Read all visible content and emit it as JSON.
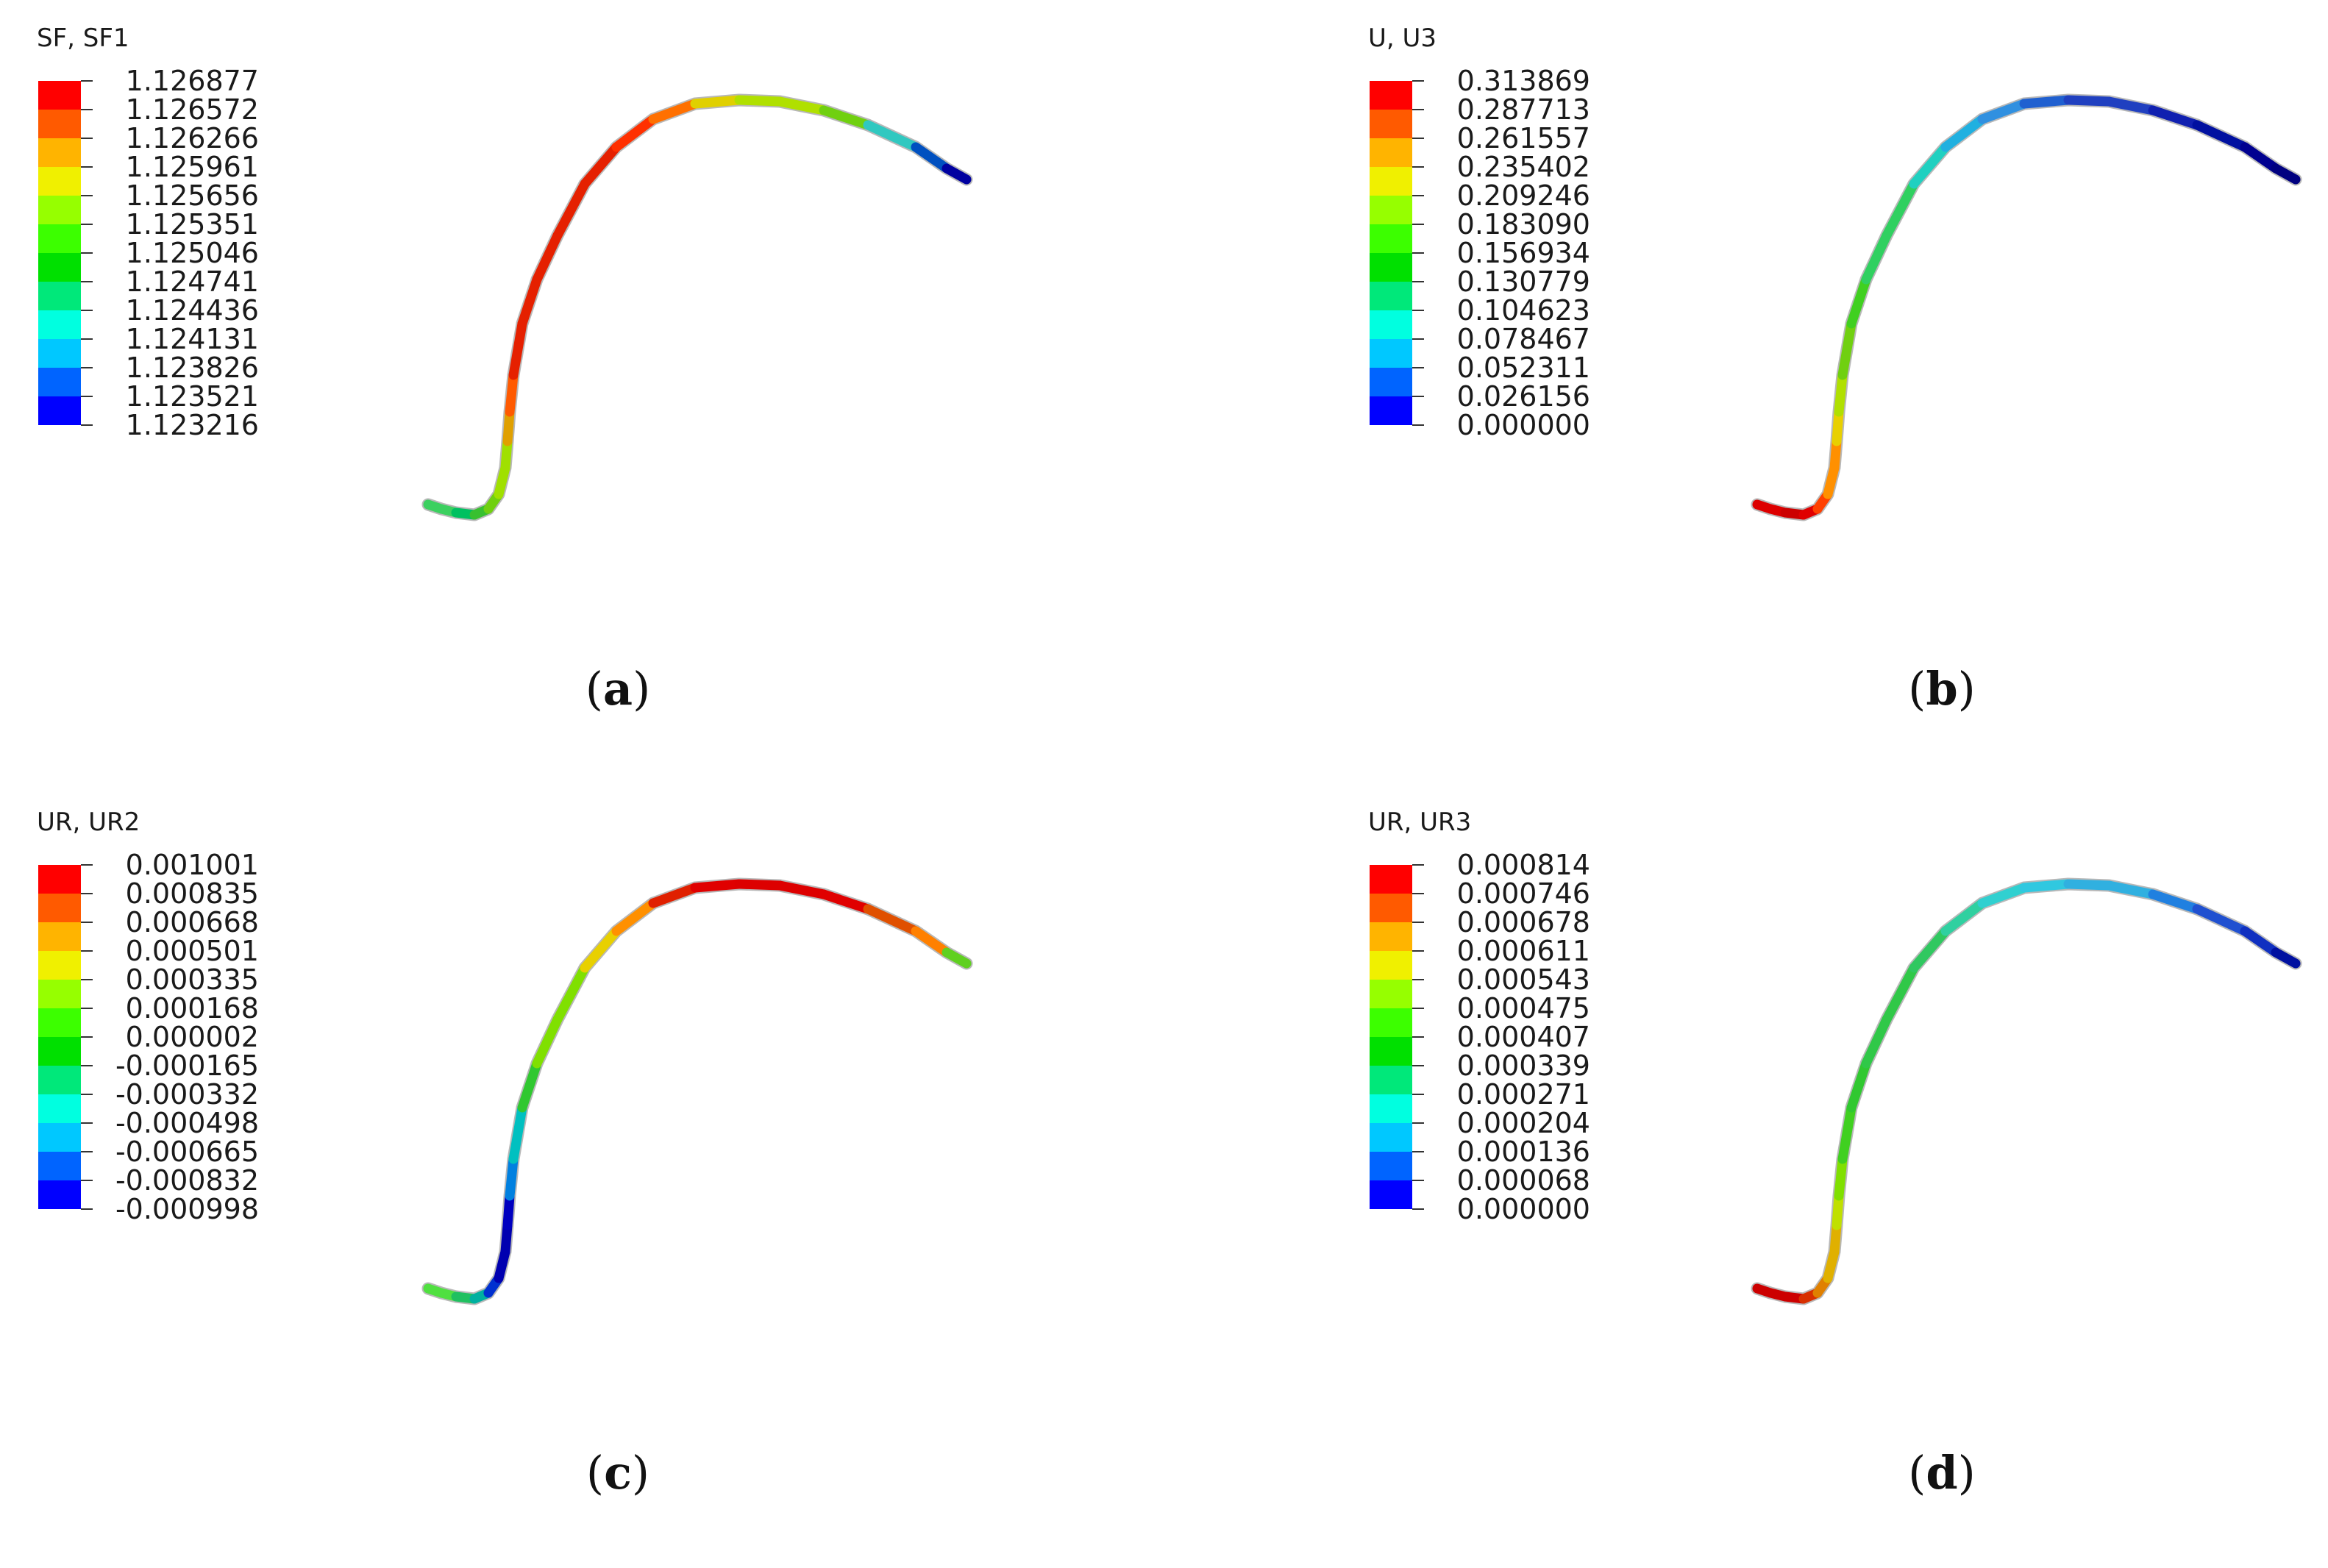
{
  "band_colors": [
    "#ff0000",
    "#ff5a00",
    "#ffb400",
    "#f0f000",
    "#96ff00",
    "#3cff00",
    "#00e000",
    "#00e87a",
    "#00ffe0",
    "#00c8ff",
    "#0064ff",
    "#0000ff"
  ],
  "panels": [
    {
      "id": "a",
      "legend_title": "SF, SF1",
      "values": [
        "1.126877",
        "1.126572",
        "1.126266",
        "1.125961",
        "1.125656",
        "1.125351",
        "1.125046",
        "1.124741",
        "1.124436",
        "1.124131",
        "1.123826",
        "1.123521",
        "1.123216"
      ],
      "caption": "a",
      "segment_colors": [
        "#3cd060",
        "#00c060",
        "#38c030",
        "#70d010",
        "#a0e000",
        "#e0a000",
        "#ff5a00",
        "#e52000",
        "#e52000",
        "#e52000",
        "#e52000",
        "#ff3000",
        "#ff7000",
        "#e0d000",
        "#b0e000",
        "#70d010",
        "#30c8c0",
        "#0050c0",
        "#0000a0"
      ]
    },
    {
      "id": "b",
      "legend_title": "U, U3",
      "values": [
        "0.313869",
        "0.287713",
        "0.261557",
        "0.235402",
        "0.209246",
        "0.183090",
        "0.156934",
        "0.130779",
        "0.104623",
        "0.078467",
        "0.052311",
        "0.026156",
        "0.000000"
      ],
      "caption": "b",
      "segment_colors": [
        "#dd0000",
        "#cc0000",
        "#e00000",
        "#ff4000",
        "#ff9000",
        "#e8d000",
        "#b0e000",
        "#70d010",
        "#40d020",
        "#30d060",
        "#20d0c0",
        "#20b0e0",
        "#3090e0",
        "#2060d0",
        "#2040c0",
        "#1020b0",
        "#0010a0",
        "#000090",
        "#000080"
      ]
    },
    {
      "id": "c",
      "legend_title": "UR, UR2",
      "values": [
        "0.001001",
        "0.000835",
        "0.000668",
        "0.000501",
        "0.000335",
        "0.000168",
        "0.000002",
        "-0.000165",
        "-0.000332",
        "-0.000498",
        "-0.000665",
        "-0.000832",
        "-0.000998"
      ],
      "caption": "c",
      "segment_colors": [
        "#50e040",
        "#20c060",
        "#00b0a0",
        "#0030d0",
        "#0000b0",
        "#0000c0",
        "#0080e0",
        "#00c0c0",
        "#30c830",
        "#80e000",
        "#e8d000",
        "#ff9000",
        "#e02000",
        "#e00000",
        "#dd0000",
        "#e00000",
        "#e05000",
        "#ff8000",
        "#60d020"
      ]
    },
    {
      "id": "d",
      "legend_title": "UR, UR3",
      "values": [
        "0.000814",
        "0.000746",
        "0.000678",
        "0.000611",
        "0.000543",
        "0.000475",
        "0.000407",
        "0.000339",
        "0.000271",
        "0.000204",
        "0.000136",
        "0.000068",
        "0.000000"
      ],
      "caption": "d",
      "segment_colors": [
        "#cc0000",
        "#cc0000",
        "#d83000",
        "#e08000",
        "#e0b000",
        "#c0e000",
        "#80e000",
        "#40d020",
        "#30c830",
        "#30c848",
        "#30c860",
        "#30d0a0",
        "#30d0d0",
        "#30c8e0",
        "#30b0e0",
        "#2080e0",
        "#2050d0",
        "#1030c0",
        "#0010a0"
      ]
    }
  ]
}
